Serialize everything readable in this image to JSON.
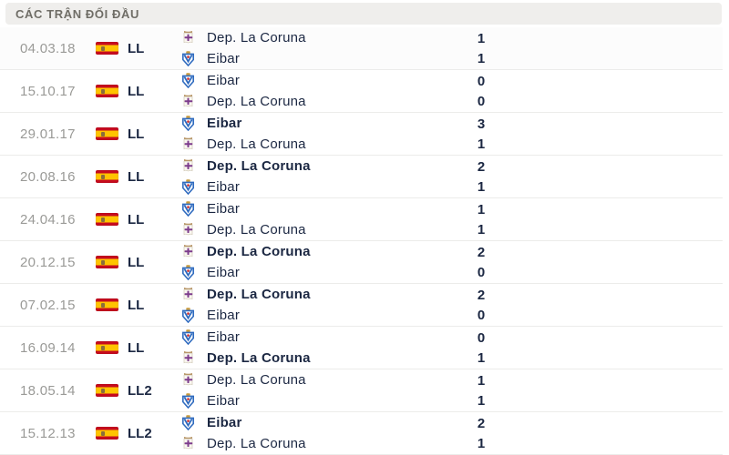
{
  "header": {
    "title": "CÁC TRẬN ĐỐI ĐẦU"
  },
  "colors": {
    "navy": "#1b2742",
    "date-gray": "#9a9a97",
    "header-bg": "#efeeec",
    "header-text": "#6f6d66",
    "separator": "#ececea",
    "flag-red": "#c60b1e",
    "flag-yellow": "#ffc400"
  },
  "icons": {
    "flag": "spain-flag-icon",
    "deportivo": "deportivo-crest-icon",
    "eibar": "eibar-crest-icon"
  },
  "matches": [
    {
      "date": "04.03.18",
      "league": "LL",
      "home": {
        "team": "Dep. La Coruna",
        "logo": "deportivo",
        "score": "1",
        "winner": false
      },
      "away": {
        "team": "Eibar",
        "logo": "eibar",
        "score": "1",
        "winner": false
      }
    },
    {
      "date": "15.10.17",
      "league": "LL",
      "home": {
        "team": "Eibar",
        "logo": "eibar",
        "score": "0",
        "winner": false
      },
      "away": {
        "team": "Dep. La Coruna",
        "logo": "deportivo",
        "score": "0",
        "winner": false
      }
    },
    {
      "date": "29.01.17",
      "league": "LL",
      "home": {
        "team": "Eibar",
        "logo": "eibar",
        "score": "3",
        "winner": true
      },
      "away": {
        "team": "Dep. La Coruna",
        "logo": "deportivo",
        "score": "1",
        "winner": false
      }
    },
    {
      "date": "20.08.16",
      "league": "LL",
      "home": {
        "team": "Dep. La Coruna",
        "logo": "deportivo",
        "score": "2",
        "winner": true
      },
      "away": {
        "team": "Eibar",
        "logo": "eibar",
        "score": "1",
        "winner": false
      }
    },
    {
      "date": "24.04.16",
      "league": "LL",
      "home": {
        "team": "Eibar",
        "logo": "eibar",
        "score": "1",
        "winner": false
      },
      "away": {
        "team": "Dep. La Coruna",
        "logo": "deportivo",
        "score": "1",
        "winner": false
      }
    },
    {
      "date": "20.12.15",
      "league": "LL",
      "home": {
        "team": "Dep. La Coruna",
        "logo": "deportivo",
        "score": "2",
        "winner": true
      },
      "away": {
        "team": "Eibar",
        "logo": "eibar",
        "score": "0",
        "winner": false
      }
    },
    {
      "date": "07.02.15",
      "league": "LL",
      "home": {
        "team": "Dep. La Coruna",
        "logo": "deportivo",
        "score": "2",
        "winner": true
      },
      "away": {
        "team": "Eibar",
        "logo": "eibar",
        "score": "0",
        "winner": false
      }
    },
    {
      "date": "16.09.14",
      "league": "LL",
      "home": {
        "team": "Eibar",
        "logo": "eibar",
        "score": "0",
        "winner": false
      },
      "away": {
        "team": "Dep. La Coruna",
        "logo": "deportivo",
        "score": "1",
        "winner": true
      }
    },
    {
      "date": "18.05.14",
      "league": "LL2",
      "home": {
        "team": "Dep. La Coruna",
        "logo": "deportivo",
        "score": "1",
        "winner": false
      },
      "away": {
        "team": "Eibar",
        "logo": "eibar",
        "score": "1",
        "winner": false
      }
    },
    {
      "date": "15.12.13",
      "league": "LL2",
      "home": {
        "team": "Eibar",
        "logo": "eibar",
        "score": "2",
        "winner": true
      },
      "away": {
        "team": "Dep. La Coruna",
        "logo": "deportivo",
        "score": "1",
        "winner": false
      }
    }
  ]
}
